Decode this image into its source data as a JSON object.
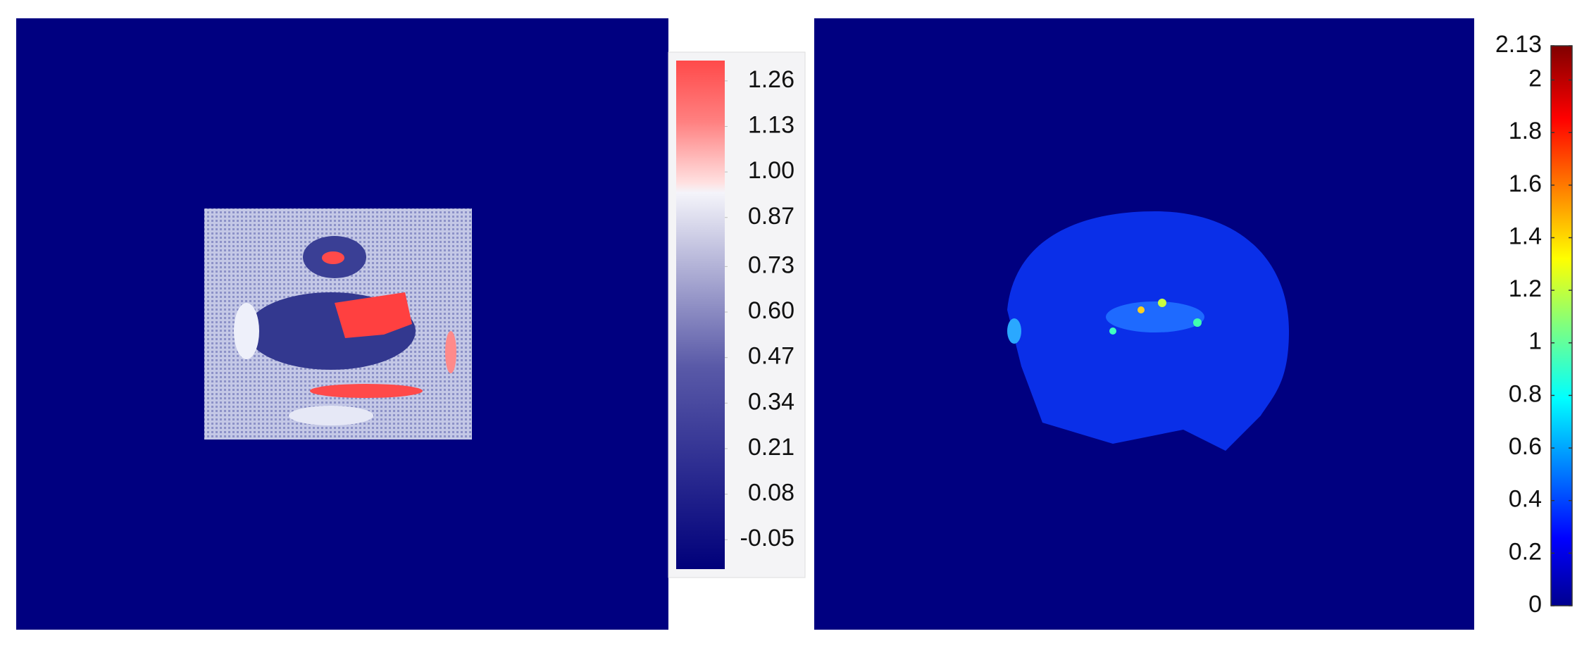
{
  "chart_data": [
    {
      "type": "image-colorbar",
      "ylim": [
        -0.134,
        1.318
      ],
      "yticks": [
        1.26,
        1.13,
        {
          "value": 1,
          "label": "1.00"
        },
        0.87,
        0.73,
        {
          "value": 0.6,
          "label": "0.60"
        },
        0.47,
        0.34,
        0.21,
        0.08,
        -0.05
      ]
    },
    {
      "type": "image-colorbar",
      "ylim": [
        0,
        2.13
      ],
      "yticks": [
        2.13,
        2,
        1.8,
        1.6,
        1.4,
        1.2,
        1,
        0.8,
        0.6,
        0.4,
        0.2,
        0
      ]
    }
  ]
}
